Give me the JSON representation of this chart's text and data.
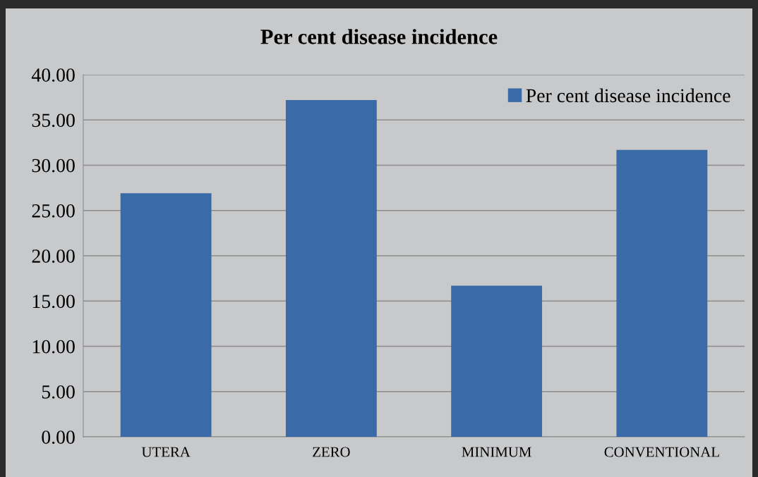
{
  "chart_data": {
    "type": "bar",
    "title": "Per cent disease incidence",
    "categories": [
      "UTERA",
      "ZERO",
      "MINIMUM",
      "CONVENTIONAL"
    ],
    "series": [
      {
        "name": "Per cent disease incidence",
        "color": "#3a6aa8",
        "values": [
          26.9,
          37.2,
          16.7,
          31.7
        ]
      }
    ],
    "ylim": [
      0,
      40
    ],
    "yticks": [
      {
        "value": 0,
        "label": "0.00"
      },
      {
        "value": 5,
        "label": "5.00"
      },
      {
        "value": 10,
        "label": "10.00"
      },
      {
        "value": 15,
        "label": "15.00"
      },
      {
        "value": 20,
        "label": "20.00"
      },
      {
        "value": 25,
        "label": "25.00"
      },
      {
        "value": 30,
        "label": "30.00"
      },
      {
        "value": 35,
        "label": "35.00"
      },
      {
        "value": 40,
        "label": "40.00"
      }
    ],
    "grid": "y",
    "legend": "top right"
  }
}
